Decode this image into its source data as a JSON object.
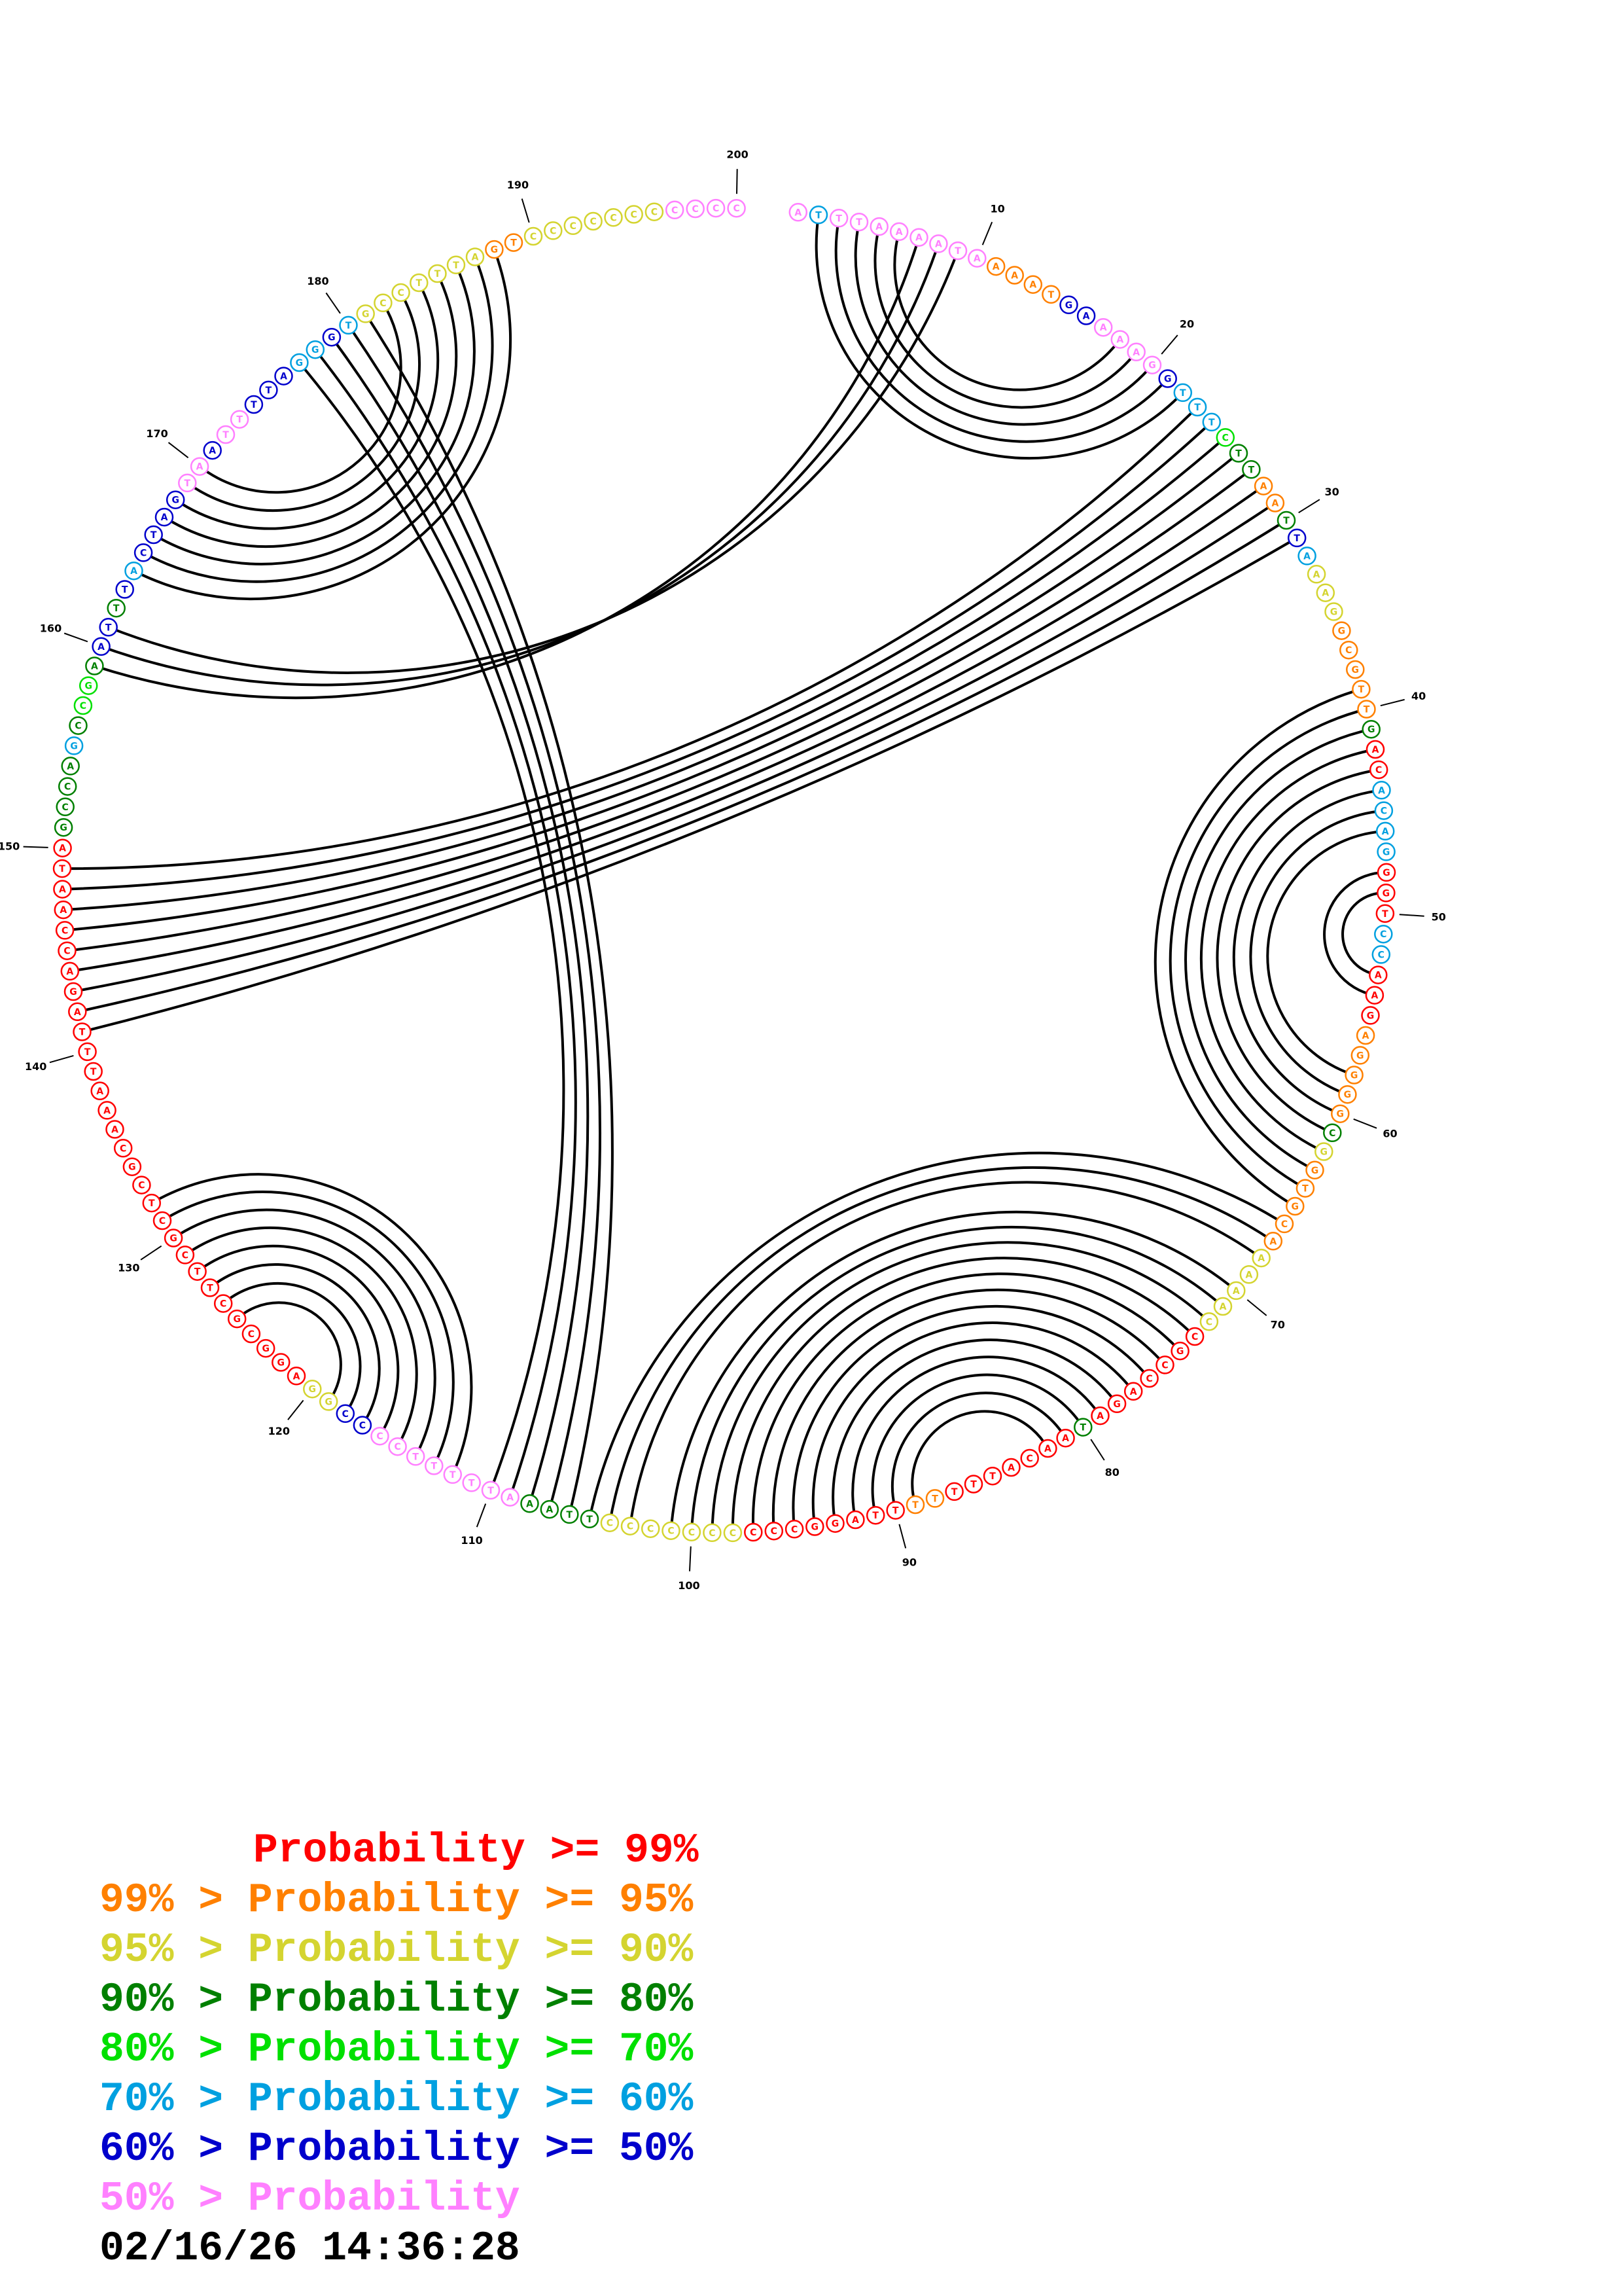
{
  "sequence": [
    "A",
    "T",
    "T",
    "T",
    "A",
    "A",
    "A",
    "A",
    "T",
    "A",
    "A",
    "A",
    "A",
    "T",
    "G",
    "A",
    "A",
    "A",
    "A",
    "G",
    "G",
    "T",
    "T",
    "T",
    "C",
    "T",
    "T",
    "A",
    "A",
    "T",
    "T",
    "A",
    "A",
    "A",
    "G",
    "G",
    "C",
    "G",
    "T",
    "T",
    "G",
    "A",
    "C",
    "A",
    "C",
    "A",
    "G",
    "G",
    "G",
    "T",
    "C",
    "C",
    "A",
    "A",
    "G",
    "A",
    "G",
    "G",
    "G",
    "G",
    "C",
    "G",
    "G",
    "T",
    "G",
    "C",
    "A",
    "A",
    "A",
    "A",
    "A",
    "C",
    "C",
    "G",
    "C",
    "C",
    "A",
    "G",
    "A",
    "T",
    "A",
    "A",
    "C",
    "A",
    "T",
    "T",
    "T",
    "T",
    "T",
    "T",
    "T",
    "A",
    "G",
    "G",
    "C",
    "C",
    "C",
    "C",
    "C",
    "C",
    "C",
    "C",
    "C",
    "C",
    "T",
    "T",
    "A",
    "A",
    "A",
    "T",
    "T",
    "T",
    "T",
    "T",
    "C",
    "C",
    "C",
    "C",
    "G",
    "G",
    "A",
    "G",
    "G",
    "C",
    "G",
    "C",
    "T",
    "T",
    "C",
    "G",
    "C",
    "T",
    "C",
    "G",
    "C",
    "A",
    "A",
    "A",
    "T",
    "T",
    "T",
    "A",
    "G",
    "A",
    "C",
    "C",
    "A",
    "A",
    "T",
    "A",
    "G",
    "C",
    "C",
    "A",
    "G",
    "C",
    "C",
    "G",
    "A",
    "A",
    "T",
    "T",
    "T",
    "A",
    "C",
    "T",
    "A",
    "G",
    "T",
    "A",
    "A",
    "T",
    "T",
    "T",
    "T",
    "A",
    "G",
    "G",
    "G",
    "T",
    "G",
    "C",
    "C",
    "T",
    "T",
    "T",
    "A",
    "G",
    "T",
    "C",
    "C",
    "C",
    "C",
    "C",
    "C",
    "C",
    "C",
    "C",
    "C",
    "C"
  ],
  "probability_level": [
    7,
    5,
    7,
    7,
    7,
    7,
    7,
    7,
    7,
    7,
    1,
    1,
    1,
    1,
    6,
    6,
    7,
    7,
    7,
    7,
    6,
    5,
    5,
    5,
    4,
    3,
    3,
    1,
    1,
    3,
    6,
    5,
    2,
    2,
    2,
    1,
    1,
    1,
    1,
    1,
    3,
    0,
    0,
    5,
    5,
    5,
    5,
    0,
    0,
    0,
    5,
    5,
    0,
    0,
    0,
    1,
    1,
    1,
    1,
    1,
    3,
    2,
    1,
    1,
    1,
    1,
    1,
    2,
    2,
    2,
    2,
    2,
    0,
    0,
    0,
    0,
    0,
    0,
    0,
    3,
    0,
    0,
    0,
    0,
    0,
    0,
    0,
    1,
    1,
    0,
    0,
    0,
    0,
    0,
    0,
    0,
    0,
    2,
    2,
    2,
    2,
    2,
    2,
    2,
    3,
    3,
    3,
    3,
    7,
    7,
    7,
    7,
    7,
    7,
    7,
    7,
    6,
    6,
    2,
    2,
    0,
    0,
    0,
    0,
    0,
    0,
    0,
    0,
    0,
    0,
    0,
    0,
    0,
    0,
    0,
    0,
    0,
    0,
    0,
    0,
    0,
    0,
    0,
    0,
    0,
    0,
    0,
    0,
    0,
    0,
    3,
    3,
    3,
    3,
    5,
    3,
    4,
    4,
    3,
    6,
    6,
    3,
    6,
    5,
    6,
    6,
    6,
    6,
    7,
    7,
    6,
    7,
    7,
    6,
    6,
    6,
    5,
    5,
    6,
    5,
    2,
    2,
    2,
    2,
    2,
    2,
    2,
    1,
    1,
    2,
    2,
    2,
    2,
    2,
    2,
    2,
    7,
    7,
    7,
    7
  ],
  "position_labels": [
    "10",
    "20",
    "30",
    "40",
    "50",
    "60",
    "70",
    "80",
    "90",
    "100",
    "110",
    "120",
    "130",
    "140",
    "150",
    "160",
    "170",
    "180",
    "190",
    "200"
  ],
  "base_pairs": [
    [
      2,
      22
    ],
    [
      3,
      21
    ],
    [
      4,
      20
    ],
    [
      5,
      19
    ],
    [
      6,
      18
    ],
    [
      7,
      159
    ],
    [
      8,
      160
    ],
    [
      9,
      161
    ],
    [
      23,
      149
    ],
    [
      24,
      148
    ],
    [
      25,
      147
    ],
    [
      26,
      146
    ],
    [
      27,
      145
    ],
    [
      28,
      144
    ],
    [
      29,
      143
    ],
    [
      30,
      142
    ],
    [
      31,
      141
    ],
    [
      39,
      65
    ],
    [
      40,
      64
    ],
    [
      41,
      63
    ],
    [
      42,
      62
    ],
    [
      43,
      61
    ],
    [
      44,
      60
    ],
    [
      45,
      59
    ],
    [
      46,
      58
    ],
    [
      48,
      54
    ],
    [
      49,
      53
    ],
    [
      66,
      105
    ],
    [
      67,
      104
    ],
    [
      68,
      103
    ],
    [
      70,
      101
    ],
    [
      71,
      100
    ],
    [
      72,
      99
    ],
    [
      73,
      98
    ],
    [
      74,
      97
    ],
    [
      75,
      96
    ],
    [
      76,
      95
    ],
    [
      77,
      94
    ],
    [
      78,
      93
    ],
    [
      79,
      92
    ],
    [
      80,
      91
    ],
    [
      81,
      90
    ],
    [
      82,
      89
    ],
    [
      106,
      181
    ],
    [
      107,
      180
    ],
    [
      108,
      179
    ],
    [
      109,
      178
    ],
    [
      110,
      177
    ],
    [
      112,
      132
    ],
    [
      113,
      131
    ],
    [
      114,
      130
    ],
    [
      115,
      129
    ],
    [
      116,
      128
    ],
    [
      117,
      127
    ],
    [
      118,
      126
    ],
    [
      119,
      125
    ],
    [
      164,
      188
    ],
    [
      165,
      187
    ],
    [
      166,
      186
    ],
    [
      167,
      185
    ],
    [
      168,
      184
    ],
    [
      169,
      183
    ],
    [
      170,
      182
    ]
  ],
  "colors": [
    "#ff0000",
    "#ff8000",
    "#d4d430",
    "#008000",
    "#00e000",
    "#00a0e0",
    "#0000cc",
    "#ff80ff"
  ],
  "legend": [
    {
      "prefix": "",
      "label": "Probability",
      "suffix": " >= 99%"
    },
    {
      "prefix": "99% > ",
      "label": "Probability",
      "suffix": " >= 95%"
    },
    {
      "prefix": "95% > ",
      "label": "Probability",
      "suffix": " >= 90%"
    },
    {
      "prefix": "90% > ",
      "label": "Probability",
      "suffix": " >= 80%"
    },
    {
      "prefix": "80% > ",
      "label": "Probability",
      "suffix": " >= 70%"
    },
    {
      "prefix": "70% > ",
      "label": "Probability",
      "suffix": " >= 60%"
    },
    {
      "prefix": "60% > ",
      "label": "Probability",
      "suffix": " >= 50%"
    },
    {
      "prefix": "50% > ",
      "label": "Probability",
      "suffix": ""
    }
  ],
  "timestamp": "02/16/26 14:36:28"
}
